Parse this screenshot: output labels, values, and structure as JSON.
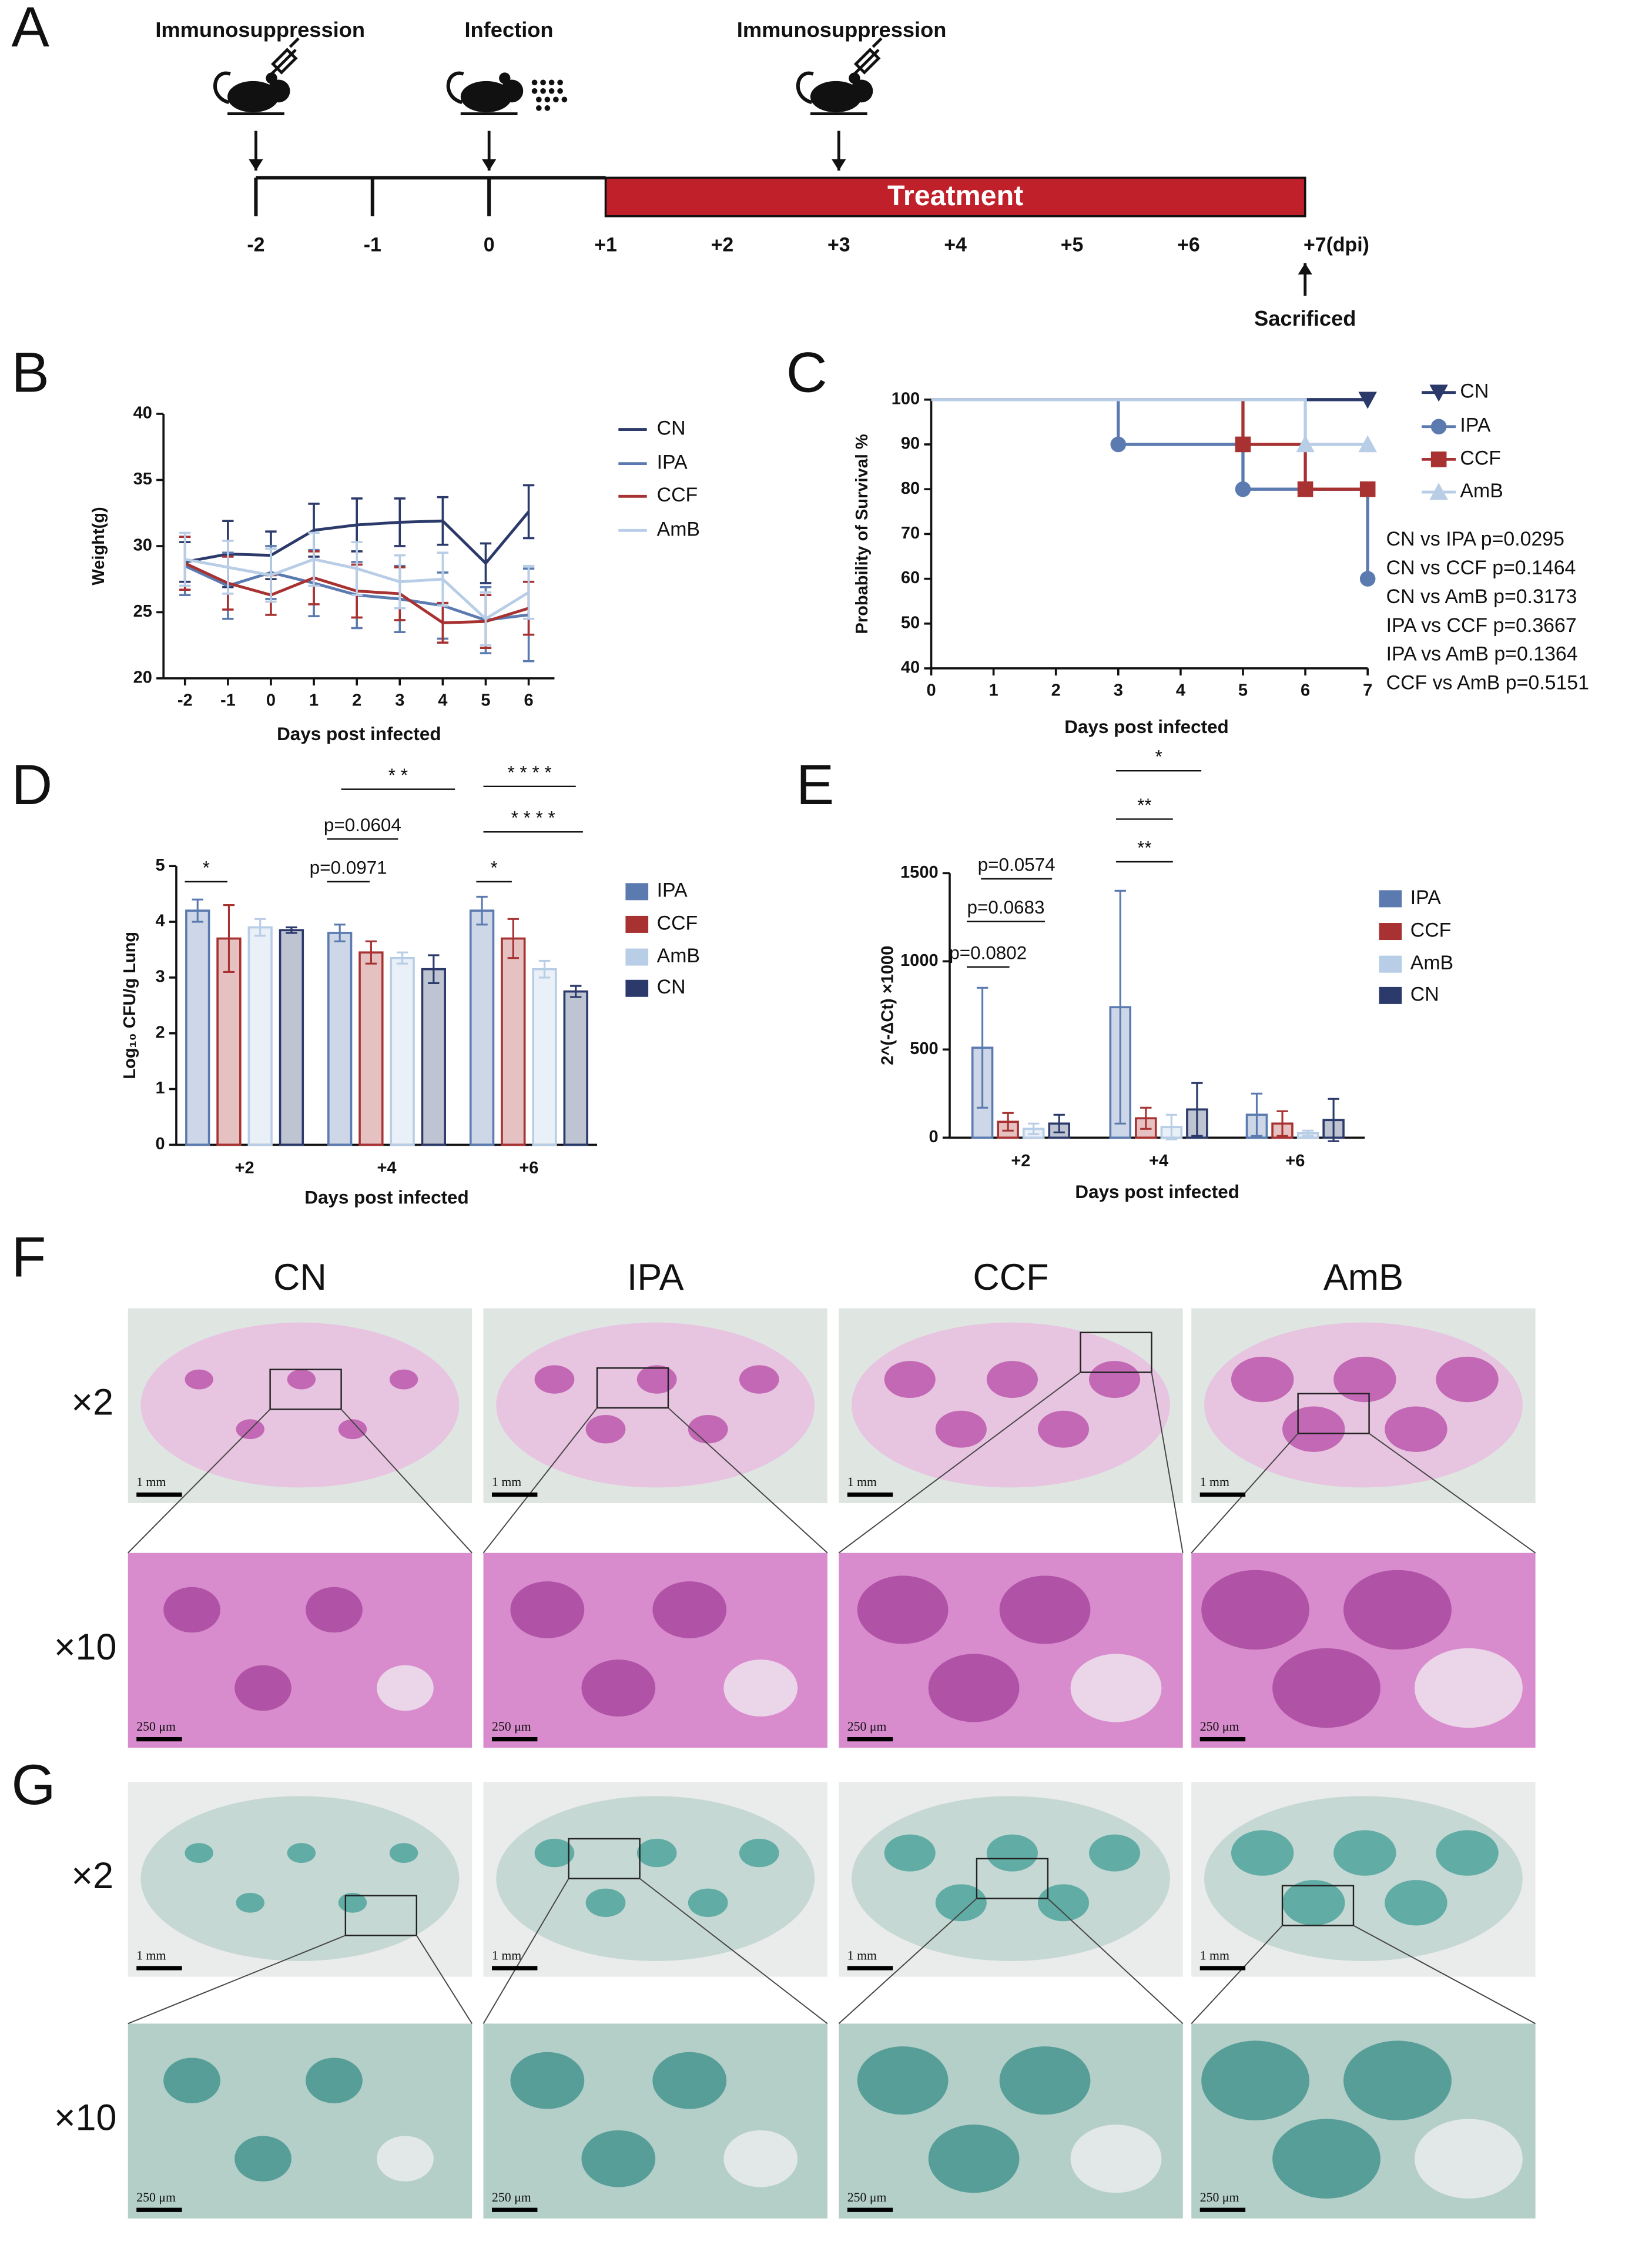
{
  "panel_labels": [
    "A",
    "B",
    "C",
    "D",
    "E",
    "F",
    "G"
  ],
  "timeline": {
    "events": [
      "Immunosuppression",
      "Infection",
      "Immunosuppression"
    ],
    "treatment": "Treatment",
    "ticks": [
      "-2",
      "-1",
      "0",
      "+1",
      "+2",
      "+3",
      "+4",
      "+5",
      "+6",
      "+7(dpi)"
    ],
    "end_label": "Sacrificed"
  },
  "chart_data": [
    {
      "type": "line",
      "x_label": "Days post infected",
      "y_label": "Weight(g)",
      "x": [
        -2,
        -1,
        0,
        1,
        2,
        3,
        4,
        5,
        6
      ],
      "xlim": [
        -2.5,
        6.6
      ],
      "xticks": [
        -2,
        -1,
        0,
        1,
        2,
        3,
        4,
        5,
        6
      ],
      "ylim": [
        20,
        40
      ],
      "yticks": [
        20,
        25,
        30,
        35,
        40
      ],
      "series": [
        {
          "name": "CN",
          "color": "#2b3a6b",
          "values": [
            28.8,
            29.4,
            29.3,
            31.2,
            31.6,
            31.8,
            31.9,
            28.7,
            32.6
          ],
          "errors": [
            1.5,
            2.5,
            1.8,
            2,
            2,
            1.8,
            1.8,
            1.5,
            2
          ]
        },
        {
          "name": "IPA",
          "color": "#5b7bb0",
          "values": [
            28.5,
            27.0,
            28.0,
            27.2,
            26.3,
            26.0,
            25.5,
            24.4,
            24.8
          ],
          "errors": [
            2.2,
            2.5,
            2,
            2.5,
            2.5,
            2.5,
            2.5,
            2.5,
            3.5
          ]
        },
        {
          "name": "CCF",
          "color": "#a83232",
          "values": [
            28.7,
            27.2,
            26.3,
            27.6,
            26.6,
            26.4,
            24.2,
            24.3,
            25.3
          ],
          "errors": [
            2,
            2,
            1.5,
            2,
            2,
            2,
            1.5,
            2,
            2
          ]
        },
        {
          "name": "AmB",
          "color": "#b8cde6",
          "values": [
            29.0,
            28.4,
            27.8,
            29.0,
            28.3,
            27.3,
            27.5,
            24.5,
            26.5
          ],
          "errors": [
            2,
            2,
            2,
            2,
            2,
            2,
            2,
            2,
            2
          ]
        }
      ]
    },
    {
      "type": "step",
      "x_label": "Days post infected",
      "y_label": "Probability of Survival %",
      "x": [
        0,
        3,
        5,
        6,
        7
      ],
      "xlim": [
        0,
        7
      ],
      "xticks": [
        0,
        1,
        2,
        3,
        4,
        5,
        6,
        7
      ],
      "ylim": [
        40,
        100
      ],
      "yticks": [
        40,
        50,
        60,
        70,
        80,
        90,
        100
      ],
      "series": [
        {
          "name": "CN",
          "color": "#2b3a6b",
          "marker": "triangle-down",
          "values": [
            100,
            100,
            100,
            100,
            100
          ]
        },
        {
          "name": "IPA",
          "color": "#5b7bb0",
          "marker": "circle",
          "values": [
            100,
            90,
            80,
            80,
            60
          ]
        },
        {
          "name": "CCF",
          "color": "#a83232",
          "marker": "square",
          "values": [
            100,
            100,
            90,
            80,
            80
          ]
        },
        {
          "name": "AmB",
          "color": "#b8cde6",
          "marker": "triangle-up",
          "values": [
            100,
            100,
            100,
            90,
            90
          ]
        }
      ],
      "annotations": [
        "CN vs IPA  p=0.0295",
        "CN vs CCF p=0.1464",
        "CN vs AmB p=0.3173",
        "IPA vs CCF p=0.3667",
        "IPA vs AmB p=0.1364",
        "CCF vs AmB p=0.5151"
      ]
    },
    {
      "type": "bar",
      "x_label": "Days post infected",
      "y_label": "Log₁₀ CFU/g  Lung",
      "categories": [
        "+2",
        "+4",
        "+6"
      ],
      "ylim": [
        0,
        5
      ],
      "yticks": [
        0,
        1,
        2,
        3,
        4,
        5
      ],
      "series": [
        {
          "name": "IPA",
          "color": "#5b7bb0",
          "values": [
            4.2,
            3.8,
            4.2
          ],
          "errors": [
            0.2,
            0.15,
            0.25
          ]
        },
        {
          "name": "CCF",
          "color": "#a83232",
          "values": [
            3.7,
            3.45,
            3.7
          ],
          "errors": [
            0.6,
            0.2,
            0.35
          ]
        },
        {
          "name": "AmB",
          "color": "#b8cde6",
          "values": [
            3.9,
            3.35,
            3.15
          ],
          "errors": [
            0.15,
            0.1,
            0.15
          ]
        },
        {
          "name": "CN",
          "color": "#2b3a6b",
          "values": [
            3.85,
            3.15,
            2.75
          ],
          "errors": [
            0.05,
            0.25,
            0.1
          ]
        }
      ],
      "annotations": [
        "*",
        "p=0.0971",
        "p=0.0604",
        "* *",
        "*",
        "* * * *",
        "* * * *"
      ]
    },
    {
      "type": "bar",
      "x_label": "Days post infected",
      "y_label": "2^(-ΔCt) ×1000",
      "categories": [
        "+2",
        "+4",
        "+6"
      ],
      "ylim": [
        0,
        1500
      ],
      "yticks": [
        0,
        500,
        1000,
        1500
      ],
      "series": [
        {
          "name": "IPA",
          "color": "#5b7bb0",
          "values": [
            510,
            740,
            130
          ],
          "errors": [
            340,
            660,
            120
          ]
        },
        {
          "name": "CCF",
          "color": "#a83232",
          "values": [
            90,
            110,
            80
          ],
          "errors": [
            50,
            60,
            70
          ]
        },
        {
          "name": "AmB",
          "color": "#b8cde6",
          "values": [
            50,
            60,
            25
          ],
          "errors": [
            30,
            70,
            15
          ]
        },
        {
          "name": "CN",
          "color": "#2b3a6b",
          "values": [
            80,
            160,
            100
          ],
          "errors": [
            50,
            150,
            120
          ]
        }
      ],
      "annotations": [
        "p=0.0802",
        "p=0.0683",
        "p=0.0574",
        "**",
        "**",
        "*"
      ]
    }
  ],
  "histology": {
    "columns": [
      "CN",
      "IPA",
      "CCF",
      "AmB"
    ],
    "magnifications": [
      "×2",
      "×10"
    ],
    "scale_bars": [
      "1 mm",
      "250 μm"
    ]
  }
}
